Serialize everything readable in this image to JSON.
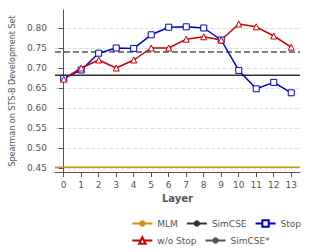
{
  "chart_data": {
    "type": "line",
    "xlabel": "Layer",
    "ylabel": "Spearman on STS-B Development Set",
    "x": [
      0,
      1,
      2,
      3,
      4,
      5,
      6,
      7,
      8,
      9,
      10,
      11,
      12,
      13
    ],
    "xlim": [
      -0.5,
      13.5
    ],
    "xticks": [
      0,
      1,
      2,
      3,
      4,
      5,
      6,
      7,
      8,
      9,
      10,
      11,
      12,
      13
    ],
    "ylim": [
      0.44,
      0.845
    ],
    "yticks": [
      0.45,
      {
        "value": 0.5,
        "label": "0.50"
      },
      0.55,
      {
        "value": 0.6,
        "label": "0.60"
      },
      0.65,
      {
        "value": 0.7,
        "label": "0.70"
      },
      0.75,
      {
        "value": 0.8,
        "label": "0.80"
      }
    ],
    "grid": true,
    "legend": "lower right",
    "series": [
      {
        "name": "MLM",
        "type": "hline",
        "color": "#d4900a",
        "line_style": "solid",
        "value": 0.452
      },
      {
        "name": "SimCSE",
        "type": "hline",
        "color": "#333333",
        "line_style": "solid",
        "value": 0.682
      },
      {
        "name": "Stop",
        "type": "line",
        "color": "#0000cc",
        "marker": "square",
        "line_style": "solid",
        "values": [
          0.674,
          0.695,
          0.737,
          0.75,
          0.749,
          0.783,
          0.802,
          0.803,
          0.8,
          0.77,
          0.694,
          0.648,
          0.664,
          0.638
        ]
      },
      {
        "name": "w/o Stop",
        "type": "line",
        "color": "#cc0000",
        "marker": "triangle",
        "line_style": "solid",
        "values": [
          0.672,
          0.7,
          0.72,
          0.7,
          0.72,
          0.75,
          0.75,
          0.772,
          0.778,
          0.77,
          0.81,
          0.803,
          0.78,
          0.752
        ]
      },
      {
        "name": "SimCSE*",
        "type": "hline",
        "color": "#555555",
        "line_style": "dashed",
        "value": 0.74
      }
    ]
  }
}
